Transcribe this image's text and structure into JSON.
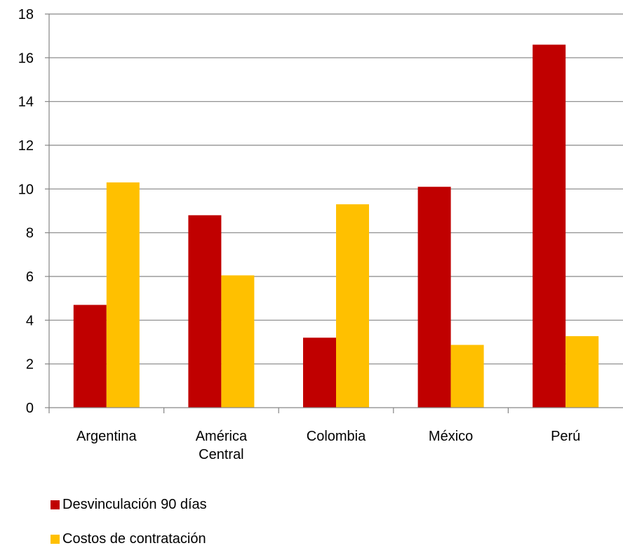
{
  "chart_data": {
    "type": "bar",
    "title": "",
    "xlabel": "",
    "ylabel": "",
    "ylim": [
      0,
      18
    ],
    "yticks": [
      0,
      2,
      4,
      6,
      8,
      10,
      12,
      14,
      16,
      18
    ],
    "grid": true,
    "legend_position": "bottom-left",
    "categories": [
      [
        "Argentina"
      ],
      [
        "América",
        "Central"
      ],
      [
        "Colombia"
      ],
      [
        "México"
      ],
      [
        "Perú"
      ]
    ],
    "series": [
      {
        "name": "Desvinculación 90 días",
        "color": "#c00000",
        "values": [
          4.7,
          8.8,
          3.2,
          10.1,
          16.6
        ]
      },
      {
        "name": "Costos de contratación",
        "color": "#ffc000",
        "values": [
          10.3,
          6.05,
          9.3,
          2.87,
          3.27
        ]
      }
    ]
  }
}
